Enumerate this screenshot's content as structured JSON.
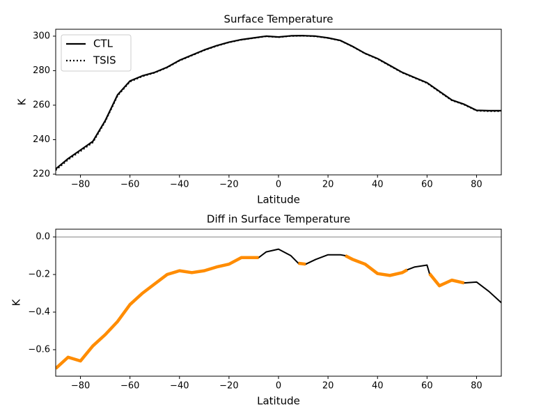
{
  "chart_data": [
    {
      "type": "line",
      "title": "Surface Temperature",
      "x_label": "Latitude",
      "y_label": "K",
      "x": [
        -90,
        -85,
        -80,
        -75,
        -70,
        -65,
        -60,
        -55,
        -50,
        -45,
        -40,
        -35,
        -30,
        -25,
        -20,
        -15,
        -10,
        -5,
        0,
        5,
        10,
        15,
        20,
        25,
        30,
        35,
        40,
        45,
        50,
        55,
        60,
        65,
        70,
        75,
        80,
        85,
        90
      ],
      "series": [
        {
          "name": "CTL",
          "color": "#000000",
          "style": "solid",
          "values": [
            223,
            229,
            234,
            239,
            251,
            266,
            274,
            277,
            279,
            282,
            286,
            289,
            292,
            294.5,
            296.5,
            298,
            299,
            300,
            299.5,
            300.2,
            300.3,
            300,
            299,
            297.5,
            294,
            290,
            287,
            283,
            279,
            276,
            273,
            268,
            263,
            260.5,
            257,
            256.8,
            256.8
          ]
        },
        {
          "name": "TSIS",
          "color": "#000000",
          "style": "dotted",
          "values": [
            222.3,
            228.4,
            233.3,
            238.4,
            250.5,
            265.5,
            273.6,
            276.7,
            278.8,
            281.8,
            285.8,
            288.8,
            291.8,
            294.3,
            296.4,
            297.9,
            298.9,
            299.9,
            299.4,
            300.1,
            300.2,
            299.9,
            298.9,
            297.4,
            293.9,
            289.9,
            286.8,
            282.8,
            278.8,
            275.8,
            272.8,
            267.7,
            262.8,
            260.3,
            256.8,
            256.5,
            256.5
          ]
        }
      ],
      "xlim": [
        -90,
        90
      ],
      "ylim": [
        219.6,
        304
      ],
      "xticks": [
        {
          "value": -80,
          "label": "−80"
        },
        {
          "value": -60,
          "label": "−60"
        },
        {
          "value": -40,
          "label": "−40"
        },
        {
          "value": -20,
          "label": "−20"
        },
        0,
        20,
        40,
        60,
        80
      ],
      "yticks": [
        220,
        240,
        260,
        280,
        300
      ],
      "legend": "upper left"
    },
    {
      "type": "line",
      "title": "Diff in Surface Temperature",
      "x_label": "Latitude",
      "y_label": "K",
      "x": [
        -90,
        -85,
        -80,
        -75,
        -70,
        -65,
        -60,
        -55,
        -50,
        -45,
        -40,
        -35,
        -30,
        -25,
        -20,
        -15,
        -10,
        -8,
        -5,
        0,
        5,
        8,
        11,
        15,
        20,
        25,
        27,
        30,
        35,
        40,
        45,
        50,
        52,
        55,
        60,
        61,
        65,
        70,
        75,
        80,
        85,
        90
      ],
      "series": [
        {
          "color": "#000000",
          "width": 2,
          "values": [
            -0.7,
            -0.64,
            -0.66,
            -0.58,
            -0.52,
            -0.45,
            -0.36,
            -0.3,
            -0.25,
            -0.2,
            -0.18,
            -0.19,
            -0.18,
            -0.16,
            -0.145,
            -0.11,
            -0.11,
            -0.11,
            -0.08,
            -0.065,
            -0.1,
            -0.14,
            -0.145,
            -0.12,
            -0.095,
            -0.095,
            -0.1,
            -0.12,
            -0.145,
            -0.195,
            -0.205,
            -0.19,
            -0.175,
            -0.16,
            -0.15,
            -0.195,
            -0.26,
            -0.23,
            -0.245,
            -0.24,
            -0.29,
            -0.35
          ]
        },
        {
          "color": "#ff8c00",
          "width": 4.5,
          "values": [
            -0.7,
            -0.64,
            -0.66,
            -0.58,
            -0.52,
            -0.45,
            -0.36,
            -0.3,
            -0.25,
            -0.2,
            -0.18,
            -0.19,
            -0.18,
            -0.16,
            -0.145,
            -0.11,
            -0.11,
            -0.11,
            null,
            null,
            null,
            -0.14,
            -0.145,
            null,
            null,
            null,
            -0.1,
            -0.12,
            -0.145,
            -0.195,
            -0.205,
            -0.19,
            -0.175,
            null,
            null,
            -0.195,
            -0.26,
            -0.23,
            -0.245,
            null,
            null,
            null
          ]
        }
      ],
      "hline": 0,
      "hline_color": "#808080",
      "xlim": [
        -90,
        90
      ],
      "ylim": [
        -0.741,
        0.041
      ],
      "xticks": [
        {
          "value": -80,
          "label": "−80"
        },
        {
          "value": -60,
          "label": "−60"
        },
        {
          "value": -40,
          "label": "−40"
        },
        {
          "value": -20,
          "label": "−20"
        },
        0,
        20,
        40,
        60,
        80
      ],
      "yticks": [
        {
          "value": -0.6,
          "label": "−0.6"
        },
        {
          "value": -0.4,
          "label": "−0.4"
        },
        {
          "value": -0.2,
          "label": "−0.2"
        },
        {
          "value": 0,
          "label": "0.0"
        }
      ]
    }
  ]
}
